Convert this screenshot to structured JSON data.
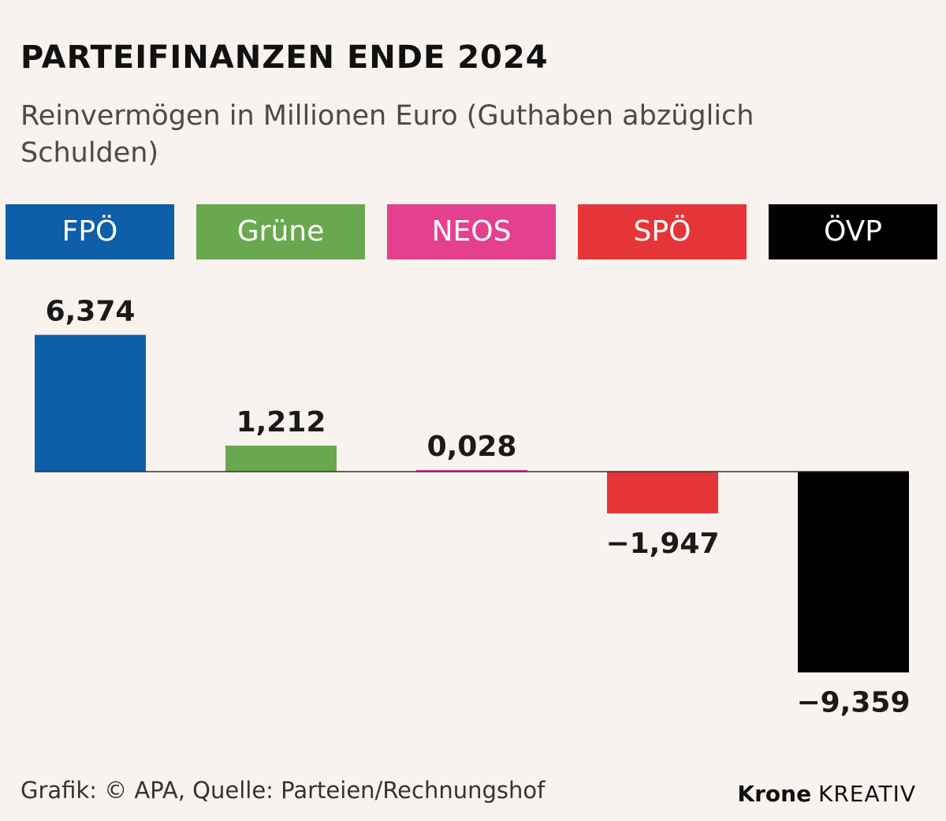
{
  "header": {
    "title": "PARTEIFINANZEN ENDE 2024",
    "subtitle": "Reinvermögen in Millionen Euro (Guthaben abzüglich Schulden)"
  },
  "colors": {
    "FPÖ": "#0f5ea8",
    "Grüne": "#6aa84f",
    "NEOS": "#e5408f",
    "SPÖ": "#e63538",
    "ÖVP": "#000000",
    "background": "#f8f3ee"
  },
  "chart_data": {
    "type": "bar",
    "categories": [
      "FPÖ",
      "Grüne",
      "NEOS",
      "SPÖ",
      "ÖVP"
    ],
    "values": [
      6.374,
      1.212,
      0.028,
      -1.947,
      -9.359
    ],
    "value_labels": [
      "6,374",
      "1,212",
      "0,028",
      "−1,947",
      "−9,359"
    ],
    "title": "PARTEIFINANZEN ENDE 2024",
    "subtitle": "Reinvermögen in Millionen Euro (Guthaben abzüglich Schulden)",
    "xlabel": "",
    "ylabel": "",
    "legend": "top",
    "grid": false
  },
  "footer": {
    "source": "Grafik: © APA, Quelle: Parteien/Rechnungshof",
    "brand_bold": "Krone",
    "brand_light": "KREATIV"
  }
}
